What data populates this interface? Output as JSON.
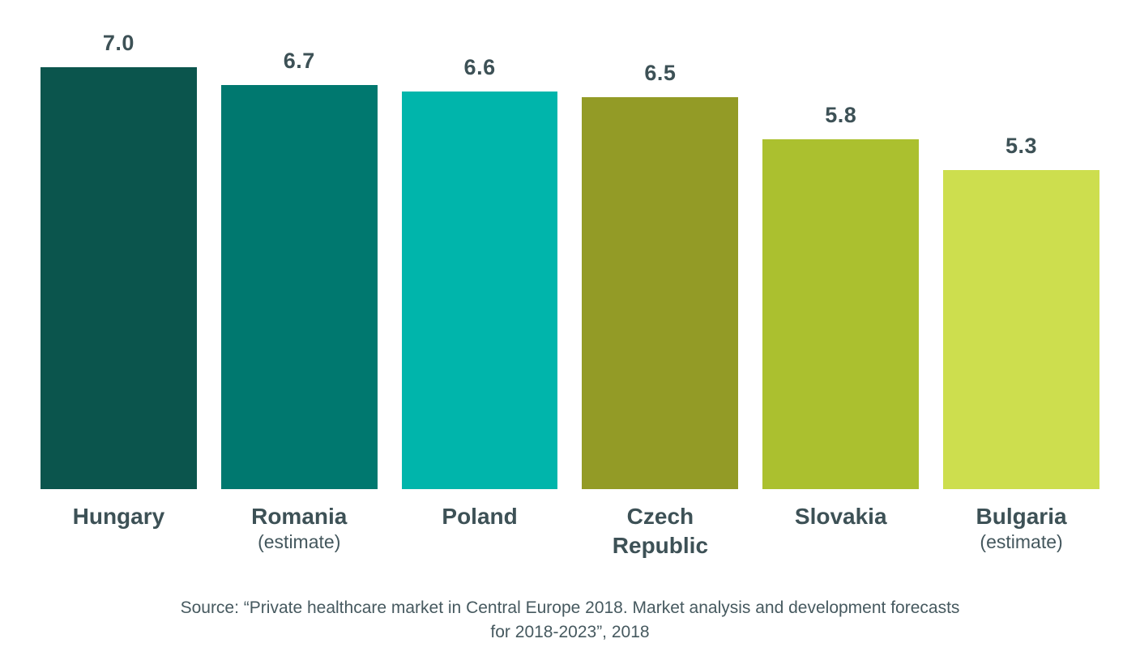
{
  "chart_data": {
    "type": "bar",
    "title": "",
    "xlabel": "",
    "ylabel": "",
    "ylim": [
      0,
      7.0
    ],
    "grid": false,
    "legend": false,
    "categories": [
      "Hungary",
      "Romania (estimate)",
      "Poland",
      "Czech Republic",
      "Slovakia",
      "Bulgaria (estimate)"
    ],
    "values": [
      7.0,
      6.7,
      6.6,
      6.5,
      5.8,
      5.3
    ],
    "bars": [
      {
        "label": "Hungary",
        "sublabel": "",
        "value": 7.0,
        "value_label": "7.0",
        "color": "#0b554d"
      },
      {
        "label": "Romania",
        "sublabel": "(estimate)",
        "value": 6.7,
        "value_label": "6.7",
        "color": "#00786f"
      },
      {
        "label": "Poland",
        "sublabel": "",
        "value": 6.6,
        "value_label": "6.6",
        "color": "#00b5ab"
      },
      {
        "label": "Czech Republic",
        "sublabel": "",
        "value": 6.5,
        "value_label": "6.5",
        "color": "#939b26"
      },
      {
        "label": "Slovakia",
        "sublabel": "",
        "value": 5.8,
        "value_label": "5.8",
        "color": "#abc02f"
      },
      {
        "label": "Bulgaria",
        "sublabel": "(estimate)",
        "value": 5.3,
        "value_label": "5.3",
        "color": "#cdde4e"
      }
    ],
    "source": "Source: “Private healthcare market in Central Europe 2018. Market analysis and development forecasts for 2018-2023”, 2018"
  },
  "colors": {
    "text": "#3d5156",
    "source_text": "#46595f",
    "background": "#ffffff"
  }
}
